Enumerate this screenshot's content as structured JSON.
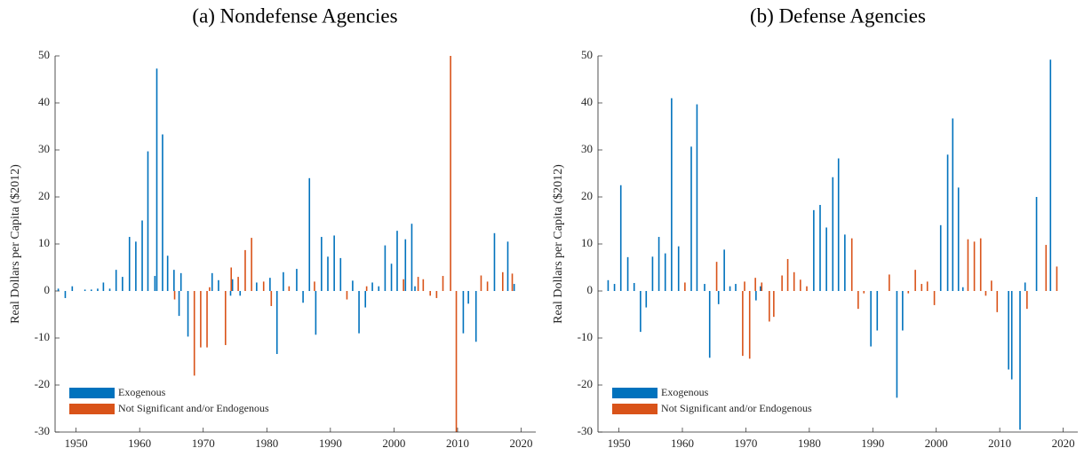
{
  "chart_data": [
    {
      "type": "bar",
      "title": "(a) Nondefense Agencies",
      "ylabel": "Real Dollars per Capita ($2012)",
      "xlim": [
        1946.7,
        2022.3
      ],
      "ylim": [
        -30,
        50
      ],
      "xticks": [
        1950,
        1960,
        1970,
        1980,
        1990,
        2000,
        2010,
        2020
      ],
      "yticks": [
        -30,
        -20,
        -10,
        0,
        10,
        20,
        30,
        40,
        50
      ],
      "legend": "lower left",
      "series": [
        {
          "name": "Exogenous",
          "color": "#0072bd",
          "x": [
            1947.2,
            1948.3,
            1949.4,
            1951.4,
            1952.4,
            1953.4,
            1954.3,
            1955.3,
            1956.3,
            1957.3,
            1958.4,
            1959.4,
            1960.4,
            1961.3,
            1962.4,
            1962.7,
            1963.6,
            1964.4,
            1965.4,
            1966.2,
            1966.5,
            1967.6,
            1971.4,
            1972.4,
            1974.3,
            1974.6,
            1975.8,
            1978.4,
            1980.5,
            1981.6,
            1982.6,
            1984.7,
            1985.7,
            1986.7,
            1987.7,
            1988.6,
            1989.6,
            1990.6,
            1991.6,
            1993.5,
            1994.5,
            1995.5,
            1996.6,
            1997.6,
            1998.6,
            1999.6,
            2000.5,
            2001.8,
            2002.8,
            2003.3,
            2010.9,
            2011.7,
            2012.9,
            2015.8,
            2017.9,
            2018.9
          ],
          "values": [
            0.5,
            -1.5,
            1,
            0.3,
            0.3,
            0.5,
            1.8,
            0.5,
            4.5,
            3,
            11.5,
            10.5,
            15,
            29.7,
            3.2,
            47.3,
            33.3,
            7.5,
            4.5,
            -5.3,
            3.8,
            -9.7,
            3.8,
            2.3,
            -1,
            2.5,
            -1,
            1.8,
            2.8,
            -13.4,
            4,
            4.7,
            -2.5,
            24,
            -9.3,
            11.5,
            7.3,
            11.8,
            7,
            2.2,
            -9,
            -3.5,
            1.8,
            1,
            9.7,
            5.8,
            12.8,
            11,
            14.3,
            1,
            -9,
            -2.7,
            -10.8,
            12.3,
            10.5,
            1.5
          ]
        },
        {
          "name": "Not Significant and/or Endogenous",
          "color": "#d95319",
          "x": [
            1965.5,
            1968.6,
            1969.6,
            1970.6,
            1971.0,
            1973.5,
            1974.4,
            1975.5,
            1976.6,
            1977.6,
            1979.5,
            1980.7,
            1983.5,
            1987.5,
            1992.6,
            1995.7,
            2001.5,
            2003.8,
            2004.6,
            2005.7,
            2006.7,
            2007.7,
            2008.9,
            2009.8,
            2013.7,
            2014.7,
            2017.1,
            2018.6
          ],
          "values": [
            -1.8,
            -18,
            -12,
            -12,
            0.8,
            -11.5,
            5,
            3,
            8.7,
            11.3,
            2,
            -3.2,
            1,
            2,
            -1.8,
            1,
            2.5,
            3,
            2.5,
            -1,
            -1.5,
            3.2,
            50,
            -30,
            3.3,
            2,
            4,
            3.7
          ]
        }
      ]
    },
    {
      "type": "bar",
      "title": "(b) Defense Agencies",
      "ylabel": "Real Dollars per Capita ($2012)",
      "xlim": [
        1946.7,
        2022.3
      ],
      "ylim": [
        -30,
        50
      ],
      "xticks": [
        1950,
        1960,
        1970,
        1980,
        1990,
        2000,
        2010,
        2020
      ],
      "yticks": [
        -30,
        -20,
        -10,
        0,
        10,
        20,
        30,
        40,
        50
      ],
      "legend": "lower left",
      "series": [
        {
          "name": "Exogenous",
          "color": "#0072bd",
          "x": [
            1948.3,
            1949.3,
            1950.3,
            1951.4,
            1952.4,
            1953.4,
            1954.3,
            1955.3,
            1956.3,
            1957.3,
            1958.3,
            1959.4,
            1961.4,
            1962.3,
            1963.5,
            1964.3,
            1965.7,
            1966.6,
            1967.5,
            1968.4,
            1971.6,
            1972.3,
            1980.7,
            1981.7,
            1982.7,
            1983.7,
            1984.6,
            1985.6,
            1989.7,
            1990.7,
            1993.8,
            1994.7,
            2000.7,
            2001.8,
            2002.6,
            2003.5,
            2004.2,
            2011.4,
            2011.9,
            2013.2,
            2014.0,
            2015.8,
            2018.0
          ],
          "values": [
            2.3,
            1.5,
            22.5,
            7.2,
            1.7,
            -8.7,
            -3.5,
            7.3,
            11.5,
            8,
            41,
            9.5,
            30.7,
            39.7,
            1.5,
            -14.2,
            -2.8,
            8.8,
            1,
            1.5,
            -2,
            1,
            17.2,
            18.3,
            13.5,
            24.2,
            28.2,
            12,
            -11.8,
            -8.4,
            -22.7,
            -8.4,
            14,
            29,
            36.7,
            22,
            0.8,
            -16.7,
            -18.8,
            -29.5,
            1.8,
            20,
            49.2
          ]
        },
        {
          "name": "Not Significant and/or Endogenous",
          "color": "#d95319",
          "x": [
            1960.4,
            1965.4,
            1969.5,
            1969.8,
            1970.6,
            1971.5,
            1972.5,
            1973.7,
            1974.4,
            1975.7,
            1976.6,
            1977.6,
            1978.6,
            1979.6,
            1986.7,
            1987.7,
            1988.6,
            1992.6,
            1995.6,
            1996.7,
            1997.7,
            1998.6,
            1999.7,
            2005.0,
            2006.0,
            2007.0,
            2007.8,
            2008.7,
            2009.6,
            2014.3,
            2017.3,
            2019.0
          ],
          "values": [
            1.8,
            6.2,
            -13.8,
            2,
            -14.4,
            2.8,
            1.8,
            -6.5,
            -5.5,
            3.3,
            6.8,
            4,
            2.4,
            1,
            11.2,
            -3.8,
            -0.5,
            3.5,
            -0.5,
            4.5,
            1.5,
            2,
            -3,
            11,
            10.5,
            11.2,
            -1,
            2.2,
            -4.5,
            -3.8,
            9.8,
            5.2
          ]
        }
      ]
    }
  ]
}
